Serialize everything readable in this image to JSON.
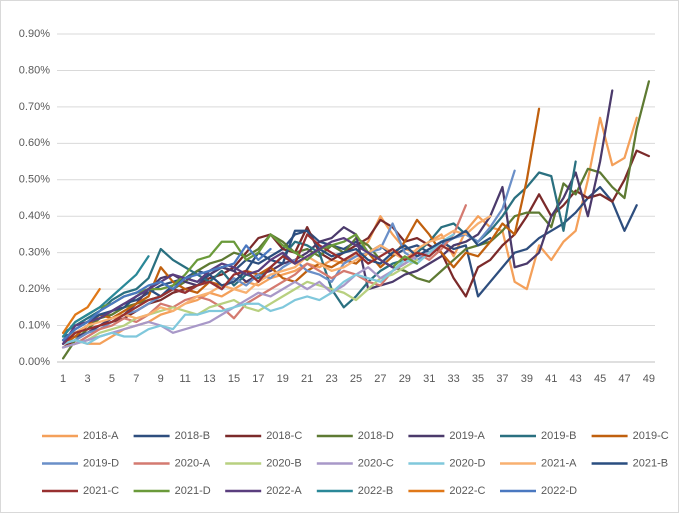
{
  "chart_data": {
    "type": "line",
    "categories": [
      1,
      null,
      3,
      null,
      5,
      null,
      7,
      null,
      9,
      null,
      11,
      null,
      13,
      null,
      15,
      null,
      17,
      null,
      19,
      null,
      21,
      null,
      23,
      null,
      25,
      null,
      27,
      null,
      29,
      null,
      31,
      null,
      33,
      null,
      35,
      null,
      37,
      null,
      39,
      null,
      41,
      null,
      43,
      null,
      45,
      null,
      47,
      null,
      49
    ],
    "ylim": [
      0,
      0.9
    ],
    "yticks": [
      {
        "value": 0,
        "label": "0.00%"
      },
      {
        "value": 0.1,
        "label": "0.10%"
      },
      {
        "value": 0.2,
        "label": "0.20%"
      },
      {
        "value": 0.3,
        "label": "0.30%"
      },
      {
        "value": 0.4,
        "label": "0.40%"
      },
      {
        "value": 0.5,
        "label": "0.50%"
      },
      {
        "value": 0.6,
        "label": "0.60%"
      },
      {
        "value": 0.7,
        "label": "0.70%"
      },
      {
        "value": 0.8,
        "label": "0.80%"
      },
      {
        "value": 0.9,
        "label": "0.90%"
      }
    ],
    "grid": true,
    "legend": "bottom",
    "series": [
      {
        "name": "2018-A",
        "color": "#F4A05A",
        "values": [
          0.05,
          0.06,
          0.05,
          0.05,
          0.07,
          0.09,
          0.1,
          0.11,
          0.13,
          0.14,
          0.16,
          0.17,
          0.19,
          0.18,
          0.2,
          0.22,
          0.21,
          0.23,
          0.24,
          0.25,
          0.27,
          0.26,
          0.28,
          0.27,
          0.3,
          0.33,
          0.4,
          0.35,
          0.31,
          0.3,
          0.33,
          0.35,
          0.29,
          0.36,
          0.4,
          0.37,
          0.36,
          0.22,
          0.2,
          0.32,
          0.28,
          0.33,
          0.36,
          0.5,
          0.67,
          0.54,
          0.56,
          0.67,
          null
        ]
      },
      {
        "name": "2018-B",
        "color": "#2E4E7E",
        "values": [
          0.07,
          0.08,
          0.1,
          0.12,
          0.14,
          0.16,
          0.17,
          0.19,
          0.21,
          0.22,
          0.23,
          0.25,
          0.24,
          0.26,
          0.25,
          0.28,
          0.27,
          0.29,
          0.31,
          0.35,
          0.36,
          0.33,
          0.32,
          0.31,
          0.33,
          0.3,
          0.32,
          0.29,
          0.31,
          0.32,
          0.3,
          0.33,
          0.31,
          0.32,
          0.18,
          0.22,
          0.26,
          0.3,
          0.31,
          0.34,
          0.36,
          0.38,
          0.41,
          0.45,
          0.48,
          0.44,
          0.36,
          0.43,
          null
        ]
      },
      {
        "name": "2018-C",
        "color": "#7B2A2A",
        "values": [
          0.04,
          0.06,
          0.08,
          0.1,
          0.11,
          0.12,
          0.14,
          0.16,
          0.17,
          0.19,
          0.2,
          0.21,
          0.23,
          0.24,
          0.26,
          0.3,
          0.34,
          0.35,
          0.31,
          0.3,
          0.37,
          0.3,
          0.28,
          0.3,
          0.32,
          0.34,
          0.39,
          0.37,
          0.33,
          0.34,
          0.32,
          0.3,
          0.23,
          0.18,
          0.26,
          0.28,
          0.32,
          0.35,
          0.4,
          0.46,
          0.4,
          0.43,
          0.47,
          0.45,
          0.46,
          0.44,
          0.5,
          0.58,
          0.565
        ]
      },
      {
        "name": "2018-D",
        "color": "#5E7A33",
        "values": [
          0.01,
          0.06,
          0.09,
          0.12,
          0.13,
          0.15,
          0.16,
          0.17,
          0.18,
          0.2,
          0.22,
          0.25,
          0.27,
          0.28,
          0.3,
          0.29,
          0.31,
          0.35,
          0.33,
          0.3,
          0.31,
          0.29,
          0.32,
          0.3,
          0.34,
          0.32,
          0.28,
          0.26,
          0.25,
          0.23,
          0.22,
          0.25,
          0.28,
          0.31,
          0.32,
          0.33,
          0.36,
          0.4,
          0.41,
          0.41,
          0.37,
          0.49,
          0.46,
          0.53,
          0.52,
          0.48,
          0.45,
          0.64,
          0.77
        ]
      },
      {
        "name": "2019-A",
        "color": "#4B3A6B",
        "values": [
          0.06,
          0.07,
          0.08,
          0.1,
          0.12,
          0.13,
          0.16,
          0.2,
          0.23,
          0.24,
          0.22,
          0.21,
          0.24,
          0.26,
          0.25,
          0.22,
          0.24,
          0.25,
          0.27,
          0.28,
          0.3,
          0.33,
          0.34,
          0.37,
          0.35,
          0.2,
          0.21,
          0.22,
          0.24,
          0.25,
          0.27,
          0.29,
          0.32,
          0.33,
          0.35,
          0.4,
          0.48,
          0.26,
          0.27,
          0.3,
          0.4,
          0.45,
          0.52,
          0.4,
          0.55,
          0.745,
          null,
          null,
          null
        ]
      },
      {
        "name": "2019-B",
        "color": "#2A7080",
        "values": [
          0.08,
          0.1,
          0.12,
          0.14,
          0.17,
          0.19,
          0.2,
          0.23,
          0.31,
          0.28,
          0.26,
          0.24,
          0.22,
          0.25,
          0.21,
          0.24,
          0.23,
          0.26,
          0.29,
          0.33,
          0.32,
          0.3,
          0.2,
          0.15,
          0.18,
          0.22,
          0.25,
          0.27,
          0.28,
          0.3,
          0.33,
          0.37,
          0.38,
          0.35,
          0.33,
          0.36,
          0.4,
          0.45,
          0.48,
          0.52,
          0.51,
          0.36,
          0.55,
          null,
          null,
          null,
          null,
          null,
          null
        ]
      },
      {
        "name": "2019-C",
        "color": "#C0600E",
        "values": [
          0.05,
          0.07,
          0.1,
          0.13,
          0.12,
          0.14,
          0.16,
          0.18,
          0.26,
          0.22,
          0.2,
          0.19,
          0.22,
          0.21,
          0.22,
          0.25,
          0.24,
          0.26,
          0.23,
          0.22,
          0.25,
          0.27,
          0.26,
          0.28,
          0.27,
          0.3,
          0.26,
          0.29,
          0.33,
          0.39,
          0.35,
          0.3,
          0.26,
          0.3,
          0.29,
          0.33,
          0.38,
          0.35,
          0.5,
          0.695,
          null,
          null,
          null,
          null,
          null,
          null,
          null,
          null,
          null
        ]
      },
      {
        "name": "2019-D",
        "color": "#6A8FC8",
        "values": [
          0.05,
          0.06,
          0.08,
          0.09,
          0.11,
          0.13,
          0.14,
          0.16,
          0.18,
          0.2,
          0.19,
          0.21,
          0.22,
          0.2,
          0.23,
          0.21,
          0.24,
          0.23,
          0.26,
          0.28,
          0.25,
          0.24,
          0.22,
          0.27,
          0.29,
          0.3,
          0.31,
          0.38,
          0.3,
          0.28,
          0.3,
          0.32,
          0.34,
          0.35,
          0.33,
          0.37,
          0.42,
          0.525,
          null,
          null,
          null,
          null,
          null,
          null,
          null,
          null,
          null,
          null,
          null
        ]
      },
      {
        "name": "2020-A",
        "color": "#D47A70",
        "values": [
          0.04,
          0.05,
          0.07,
          0.09,
          0.1,
          0.12,
          0.11,
          0.13,
          0.16,
          0.15,
          0.17,
          0.18,
          0.17,
          0.15,
          0.12,
          0.16,
          0.18,
          0.2,
          0.22,
          0.24,
          0.27,
          0.25,
          0.23,
          0.25,
          0.24,
          0.22,
          0.21,
          0.25,
          0.27,
          0.3,
          0.28,
          0.31,
          0.35,
          0.43,
          null,
          null,
          null,
          null,
          null,
          null,
          null,
          null,
          null,
          null,
          null,
          null,
          null,
          null,
          null
        ]
      },
      {
        "name": "2020-B",
        "color": "#B8D080",
        "values": [
          0.04,
          0.05,
          0.06,
          0.08,
          0.09,
          0.1,
          0.12,
          0.13,
          0.14,
          0.15,
          0.14,
          0.13,
          0.15,
          0.16,
          0.17,
          0.15,
          0.14,
          0.16,
          0.18,
          0.2,
          0.22,
          0.21,
          0.2,
          0.19,
          0.17,
          0.2,
          0.23,
          0.24,
          0.26,
          0.28,
          null,
          null,
          null,
          null,
          null,
          null,
          null,
          null,
          null,
          null,
          null,
          null,
          null,
          null,
          null,
          null,
          null,
          null,
          null
        ]
      },
      {
        "name": "2020-C",
        "color": "#A898C8",
        "values": [
          0.04,
          0.05,
          0.06,
          0.07,
          0.08,
          0.09,
          0.1,
          0.11,
          0.1,
          0.08,
          0.09,
          0.1,
          0.11,
          0.13,
          0.15,
          0.17,
          0.19,
          0.18,
          0.2,
          0.22,
          0.2,
          0.22,
          0.19,
          0.21,
          0.24,
          0.26,
          0.23,
          0.25,
          0.27,
          0.29,
          0.3,
          0.32,
          null,
          null,
          null,
          null,
          null,
          null,
          null,
          null,
          null,
          null,
          null,
          null,
          null,
          null,
          null,
          null,
          null
        ]
      },
      {
        "name": "2020-D",
        "color": "#80C8DC",
        "values": [
          0.05,
          0.06,
          0.05,
          0.07,
          0.08,
          0.07,
          0.07,
          0.09,
          0.1,
          0.09,
          0.13,
          0.13,
          0.14,
          0.14,
          0.15,
          0.16,
          0.16,
          0.14,
          0.15,
          0.17,
          0.18,
          0.17,
          0.19,
          0.22,
          0.24,
          0.23,
          0.22,
          0.25,
          0.28,
          0.27,
          0.3,
          0.33,
          0.35,
          null,
          null,
          null,
          null,
          null,
          null,
          null,
          null,
          null,
          null,
          null,
          null,
          null,
          null,
          null,
          null
        ]
      },
      {
        "name": "2021-A",
        "color": "#F8B070",
        "values": [
          0.06,
          0.08,
          0.1,
          0.11,
          0.12,
          0.13,
          0.12,
          0.13,
          0.15,
          0.14,
          0.16,
          0.18,
          0.19,
          0.21,
          0.2,
          0.19,
          0.22,
          0.24,
          0.25,
          0.26,
          0.29,
          0.27,
          0.25,
          0.26,
          0.28,
          0.3,
          0.32,
          0.3,
          0.28,
          0.31,
          0.33,
          0.34,
          0.36,
          0.35,
          0.38,
          0.4,
          null,
          null,
          null,
          null,
          null,
          null,
          null,
          null,
          null,
          null,
          null,
          null,
          null
        ]
      },
      {
        "name": "2021-B",
        "color": "#2A4E80",
        "values": [
          0.06,
          0.09,
          0.11,
          0.13,
          0.14,
          0.15,
          0.18,
          0.2,
          0.18,
          0.21,
          0.23,
          0.22,
          0.24,
          0.21,
          0.22,
          0.25,
          0.3,
          0.28,
          0.27,
          0.36,
          0.36,
          0.31,
          0.29,
          0.3,
          0.31,
          0.28,
          0.27,
          0.3,
          0.32,
          0.29,
          0.31,
          0.33,
          0.34,
          0.36,
          0.32,
          0.34,
          null,
          null,
          null,
          null,
          null,
          null,
          null,
          null,
          null,
          null,
          null,
          null,
          null
        ]
      },
      {
        "name": "2021-C",
        "color": "#983030",
        "values": [
          0.05,
          0.08,
          0.09,
          0.1,
          0.11,
          0.13,
          0.15,
          0.17,
          0.18,
          0.2,
          0.19,
          0.21,
          0.22,
          0.2,
          0.24,
          0.25,
          0.22,
          0.26,
          0.29,
          0.27,
          0.35,
          0.32,
          0.3,
          0.28,
          0.3,
          0.27,
          0.29,
          0.31,
          0.28,
          0.3,
          0.29,
          0.32,
          0.3,
          null,
          null,
          null,
          null,
          null,
          null,
          null,
          null,
          null,
          null,
          null,
          null,
          null,
          null,
          null,
          null
        ]
      },
      {
        "name": "2021-D",
        "color": "#6A9A3A",
        "values": [
          0.07,
          0.11,
          0.13,
          0.15,
          0.16,
          0.18,
          0.19,
          0.2,
          0.2,
          0.21,
          0.24,
          0.28,
          0.29,
          0.33,
          0.33,
          0.28,
          0.3,
          0.35,
          0.32,
          0.3,
          0.28,
          0.31,
          0.32,
          0.33,
          0.35,
          0.3,
          0.28,
          0.26,
          0.29,
          0.27,
          null,
          null,
          null,
          null,
          null,
          null,
          null,
          null,
          null,
          null,
          null,
          null,
          null,
          null,
          null,
          null,
          null,
          null,
          null
        ]
      },
      {
        "name": "2022-A",
        "color": "#5A3E7E",
        "values": [
          0.05,
          0.1,
          0.11,
          0.12,
          0.14,
          0.16,
          0.18,
          0.2,
          0.22,
          0.24,
          0.23,
          0.22,
          0.25,
          0.27,
          0.26,
          0.24,
          0.25,
          0.28,
          0.3,
          0.27,
          0.29,
          0.31,
          0.33,
          0.34,
          0.32,
          0.3,
          0.28,
          0.26,
          null,
          null,
          null,
          null,
          null,
          null,
          null,
          null,
          null,
          null,
          null,
          null,
          null,
          null,
          null,
          null,
          null,
          null,
          null,
          null,
          null
        ]
      },
      {
        "name": "2022-B",
        "color": "#2A8898",
        "values": [
          0.07,
          0.11,
          0.13,
          0.15,
          0.18,
          0.21,
          0.24,
          0.29,
          null,
          null,
          null,
          null,
          null,
          null,
          null,
          null,
          null,
          null,
          null,
          null,
          null,
          null,
          null,
          null,
          null,
          null,
          null,
          null,
          null,
          null,
          null,
          null,
          null,
          null,
          null,
          null,
          null,
          null,
          null,
          null,
          null,
          null,
          null,
          null,
          null,
          null,
          null,
          null,
          null
        ]
      },
      {
        "name": "2022-C",
        "color": "#E07818",
        "values": [
          0.08,
          0.13,
          0.15,
          0.2,
          null,
          null,
          null,
          null,
          null,
          null,
          null,
          null,
          null,
          null,
          null,
          null,
          null,
          null,
          null,
          null,
          null,
          null,
          null,
          null,
          null,
          null,
          null,
          null,
          null,
          null,
          null,
          null,
          null,
          null,
          null,
          null,
          null,
          null,
          null,
          null,
          null,
          null,
          null,
          null,
          null,
          null,
          null,
          null,
          null
        ]
      },
      {
        "name": "2022-D",
        "color": "#4A78C0",
        "values": [
          0.06,
          0.09,
          0.11,
          0.14,
          0.16,
          0.18,
          0.19,
          0.21,
          0.22,
          0.2,
          0.23,
          0.24,
          0.25,
          0.26,
          0.27,
          0.32,
          0.28,
          0.31,
          null,
          null,
          null,
          null,
          null,
          null,
          null,
          null,
          null,
          null,
          null,
          null,
          null,
          null,
          null,
          null,
          null,
          null,
          null,
          null,
          null,
          null,
          null,
          null,
          null,
          null,
          null,
          null,
          null,
          null,
          null
        ]
      }
    ]
  }
}
